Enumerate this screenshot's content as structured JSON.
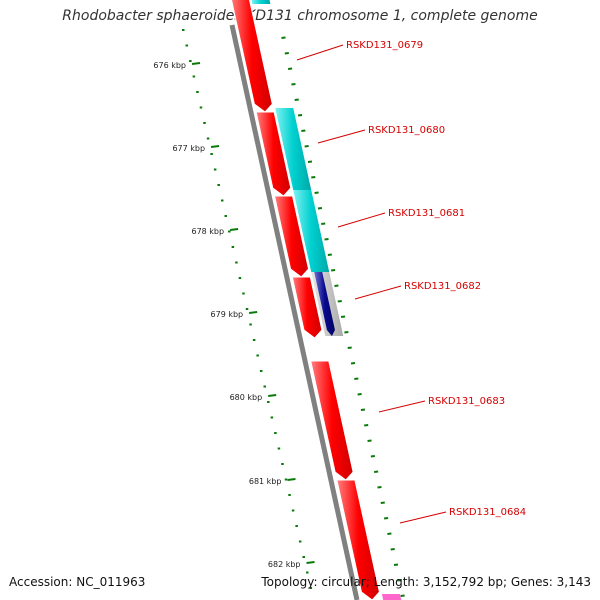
{
  "title": "Rhodobacter sphaeroides KD131 chromosome 1, complete genome",
  "accession": "Accession: NC_011963",
  "topology": "Topology: circular; Length: 3,152,792 bp; Genes: 3,143",
  "ruler": {
    "labels": [
      "676 kbp",
      "677 kbp",
      "678 kbp",
      "679 kbp",
      "680 kbp",
      "681 kbp",
      "682 kbp"
    ],
    "tick_color": "#0b7a0b"
  },
  "genes": [
    {
      "name": "RSKD131_0679",
      "strand": "forward",
      "color": "#ff0000"
    },
    {
      "name": "RSKD131_0680",
      "strand": "forward",
      "color": "#ff0000"
    },
    {
      "name": "RSKD131_0681",
      "strand": "forward",
      "color": "#ff0000"
    },
    {
      "name": "RSKD131_0682",
      "strand": "forward",
      "color": "#ff0000"
    },
    {
      "name": "RSKD131_0683",
      "strand": "forward",
      "color": "#ff0000"
    },
    {
      "name": "RSKD131_0684",
      "strand": "forward",
      "color": "#ff0000"
    }
  ],
  "cog_colors": {
    "cyan": "#00d0d0",
    "dark_blue": "#0a0a90",
    "gray": "#bdbdbd",
    "pink": "#ff66cc"
  },
  "backbone_color": "#808080"
}
